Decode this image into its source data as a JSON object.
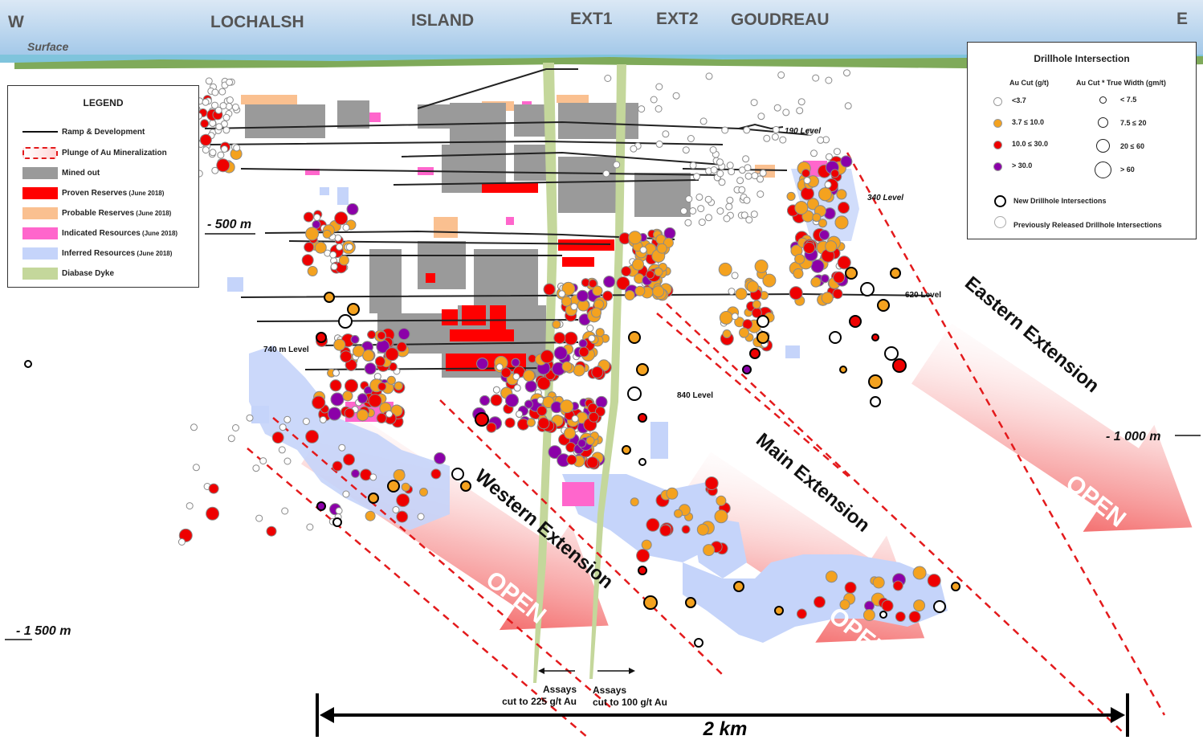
{
  "header": {
    "west": "W",
    "east": "E",
    "surface": "Surface",
    "zones": [
      "LOCHALSH",
      "ISLAND",
      "EXT1",
      "EXT2",
      "GOUDREAU"
    ]
  },
  "depths": [
    "- 500 m",
    "- 1 000 m",
    "- 1 500 m"
  ],
  "levels": [
    "190 Level",
    "340 Level",
    "620 Level",
    "740 m Level",
    "840 Level"
  ],
  "extensions": [
    "Western Extension",
    "Main Extension",
    "Eastern Extension"
  ],
  "open_label": "OPEN",
  "assays": {
    "left_line1": "Assays",
    "left_line2": "cut to 225 g/t Au",
    "right_line1": "Assays",
    "right_line2": "cut to 100 g/t Au"
  },
  "scale_label": "2 km",
  "legend": {
    "title": "LEGEND",
    "items": [
      {
        "label": "Ramp & Development",
        "small": "",
        "kind": "line",
        "color": "#111111"
      },
      {
        "label": "Plunge of Au Mineralization",
        "small": "",
        "kind": "dashed-box",
        "color": "#e31a1c"
      },
      {
        "label": "Mined out",
        "small": "",
        "kind": "fill",
        "color": "#9a9a9a"
      },
      {
        "label": "Proven Reserves",
        "small": " (June 2018)",
        "kind": "fill",
        "color": "#ff0000"
      },
      {
        "label": "Probable Reserves",
        "small": " (June 2018)",
        "kind": "fill",
        "color": "#fac090"
      },
      {
        "label": "Indicated Resources",
        "small": " (June 2018)",
        "kind": "fill",
        "color": "#ff66cc"
      },
      {
        "label": "Inferred Resources",
        "small": " (June 2018)",
        "kind": "fill",
        "color": "#c5d4fa"
      },
      {
        "label": "Diabase Dyke",
        "small": "",
        "kind": "fill",
        "color": "#c4d79b"
      }
    ]
  },
  "drillhole_legend": {
    "title": "Drillhole Intersection",
    "col1_header": "Au Cut (g/t)",
    "col2_header": "Au Cut * True Width  (gm/t)",
    "grades": [
      {
        "label": "<3.7",
        "color": "#ffffff"
      },
      {
        "label": "3.7 ≤ 10.0",
        "color": "#f4a21f"
      },
      {
        "label": "10.0 ≤ 30.0",
        "color": "#ee0000"
      },
      {
        "label": "> 30.0",
        "color": "#8b00a8"
      }
    ],
    "widths": [
      "< 7.5",
      "7.5 ≤ 20",
      "20 ≤ 60",
      "> 60"
    ],
    "new_label": "New Drillhole Intersections",
    "prev_label": "Previously Released Drillhole Intersections"
  },
  "colors": {
    "low": "#ffffff",
    "mid": "#f4a21f",
    "high": "#ee0000",
    "very_high": "#8b00a8",
    "mined": "#9a9a9a",
    "proven": "#ff0000",
    "probable": "#fac090",
    "indicated": "#ff66cc",
    "inferred": "#c5d4fa",
    "dyke": "#c4d79b",
    "plunge": "#e31a1c"
  }
}
